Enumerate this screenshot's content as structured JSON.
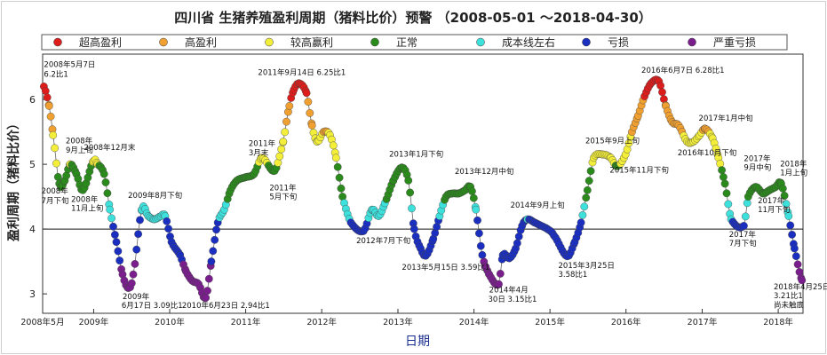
{
  "chart_data": {
    "type": "scatter",
    "title": "四川省 生猪养殖盈利周期（猪料比价）预警 （2008-05-01 ～2018-04-30）",
    "xlabel": "日期",
    "ylabel": "盈利周期（猪料比价）",
    "x_range": [
      "2008-05-01",
      "2018-04-30"
    ],
    "ylim": [
      2.7,
      6.7
    ],
    "yticks": [
      3,
      4,
      5,
      6
    ],
    "reference_line": 4,
    "legend_position": "top",
    "x_ticks": [
      {
        "date": "2008-05-01",
        "label": "2008年5月"
      },
      {
        "date": "2009-01-01",
        "label": "2009年"
      },
      {
        "date": "2010-01-01",
        "label": "2010年"
      },
      {
        "date": "2011-01-01",
        "label": "2011年"
      },
      {
        "date": "2012-01-01",
        "label": "2012年"
      },
      {
        "date": "2013-01-01",
        "label": "2013年"
      },
      {
        "date": "2014-01-01",
        "label": "2014年"
      },
      {
        "date": "2015-01-01",
        "label": "2015年"
      },
      {
        "date": "2016-01-01",
        "label": "2016年"
      },
      {
        "date": "2017-01-01",
        "label": "2017年"
      },
      {
        "date": "2018-01-01",
        "label": "2018年"
      }
    ],
    "categories": [
      {
        "name": "超高盈利",
        "color": "#dd1c1c"
      },
      {
        "name": "高盈利",
        "color": "#f0a030"
      },
      {
        "name": "较高赢利",
        "color": "#f2ee3a"
      },
      {
        "name": "正常",
        "color": "#2a8a1c"
      },
      {
        "name": "成本线左右",
        "color": "#3ee0dc"
      },
      {
        "name": "亏损",
        "color": "#1a2ec0"
      },
      {
        "name": "严重亏损",
        "color": "#7a1e8e"
      }
    ],
    "series_points": [
      [
        "2008-05-07",
        6.2
      ],
      [
        "2008-06-01",
        5.9
      ],
      [
        "2008-06-20",
        5.45
      ],
      [
        "2008-07-20",
        4.7
      ],
      [
        "2008-08-15",
        4.75
      ],
      [
        "2008-09-10",
        5.0
      ],
      [
        "2008-10-10",
        4.85
      ],
      [
        "2008-11-10",
        4.6
      ],
      [
        "2008-12-31",
        5.05
      ],
      [
        "2009-01-20",
        5.0
      ],
      [
        "2009-02-20",
        4.85
      ],
      [
        "2009-03-20",
        4.3
      ],
      [
        "2009-04-20",
        3.8
      ],
      [
        "2009-05-20",
        3.3
      ],
      [
        "2009-06-17",
        3.09
      ],
      [
        "2009-07-10",
        3.3
      ],
      [
        "2009-08-20",
        4.3
      ],
      [
        "2009-09-20",
        4.2
      ],
      [
        "2009-10-20",
        4.15
      ],
      [
        "2009-11-20",
        4.2
      ],
      [
        "2009-12-10",
        4.2
      ],
      [
        "2010-01-10",
        3.8
      ],
      [
        "2010-02-20",
        3.6
      ],
      [
        "2010-03-20",
        3.35
      ],
      [
        "2010-04-20",
        3.2
      ],
      [
        "2010-05-20",
        3.15
      ],
      [
        "2010-06-23",
        2.94
      ],
      [
        "2010-07-20",
        3.5
      ],
      [
        "2010-08-20",
        4.1
      ],
      [
        "2010-09-20",
        4.3
      ],
      [
        "2010-10-20",
        4.6
      ],
      [
        "2010-11-20",
        4.75
      ],
      [
        "2010-12-31",
        4.8
      ],
      [
        "2011-02-10",
        4.85
      ],
      [
        "2011-03-20",
        5.1
      ],
      [
        "2011-05-20",
        4.9
      ],
      [
        "2011-06-30",
        5.35
      ],
      [
        "2011-07-30",
        5.9
      ],
      [
        "2011-08-20",
        6.15
      ],
      [
        "2011-09-14",
        6.25
      ],
      [
        "2011-10-20",
        6.1
      ],
      [
        "2011-11-15",
        5.6
      ],
      [
        "2011-12-10",
        5.35
      ],
      [
        "2012-01-10",
        5.5
      ],
      [
        "2012-02-10",
        5.45
      ],
      [
        "2012-03-10",
        5.1
      ],
      [
        "2012-04-10",
        4.5
      ],
      [
        "2012-05-20",
        4.1
      ],
      [
        "2012-07-20",
        3.97
      ],
      [
        "2012-08-30",
        4.3
      ],
      [
        "2012-09-30",
        4.2
      ],
      [
        "2012-10-30",
        4.4
      ],
      [
        "2012-12-10",
        4.75
      ],
      [
        "2013-01-20",
        4.95
      ],
      [
        "2013-02-20",
        4.75
      ],
      [
        "2013-03-20",
        4.0
      ],
      [
        "2013-04-20",
        3.7
      ],
      [
        "2013-05-15",
        3.59
      ],
      [
        "2013-06-20",
        3.85
      ],
      [
        "2013-07-20",
        4.2
      ],
      [
        "2013-08-20",
        4.5
      ],
      [
        "2013-09-20",
        4.55
      ],
      [
        "2013-10-20",
        4.55
      ],
      [
        "2013-11-20",
        4.6
      ],
      [
        "2013-12-15",
        4.65
      ],
      [
        "2014-01-10",
        4.3
      ],
      [
        "2014-02-10",
        3.6
      ],
      [
        "2014-03-15",
        3.3
      ],
      [
        "2014-04-30",
        3.15
      ],
      [
        "2014-05-20",
        3.6
      ],
      [
        "2014-06-20",
        3.55
      ],
      [
        "2014-07-20",
        3.7
      ],
      [
        "2014-08-20",
        4.05
      ],
      [
        "2014-09-15",
        4.15
      ],
      [
        "2014-10-20",
        4.1
      ],
      [
        "2014-11-20",
        4.05
      ],
      [
        "2014-12-20",
        4.0
      ],
      [
        "2015-01-20",
        3.9
      ],
      [
        "2015-03-25",
        3.58
      ],
      [
        "2015-04-30",
        3.8
      ],
      [
        "2015-05-30",
        4.1
      ],
      [
        "2015-06-30",
        4.6
      ],
      [
        "2015-07-30",
        5.1
      ],
      [
        "2015-09-15",
        5.15
      ],
      [
        "2015-10-20",
        5.1
      ],
      [
        "2015-11-20",
        4.97
      ],
      [
        "2015-12-30",
        5.15
      ],
      [
        "2016-01-30",
        5.5
      ],
      [
        "2016-02-28",
        5.75
      ],
      [
        "2016-03-30",
        6.05
      ],
      [
        "2016-04-30",
        6.25
      ],
      [
        "2016-06-07",
        6.28
      ],
      [
        "2016-07-10",
        5.9
      ],
      [
        "2016-08-10",
        5.65
      ],
      [
        "2016-09-10",
        5.6
      ],
      [
        "2016-10-20",
        5.35
      ],
      [
        "2016-11-20",
        5.35
      ],
      [
        "2016-12-20",
        5.45
      ],
      [
        "2017-01-15",
        5.55
      ],
      [
        "2017-02-20",
        5.4
      ],
      [
        "2017-03-20",
        5.1
      ],
      [
        "2017-04-20",
        4.7
      ],
      [
        "2017-05-20",
        4.15
      ],
      [
        "2017-07-20",
        4.05
      ],
      [
        "2017-08-10",
        4.5
      ],
      [
        "2017-09-15",
        4.65
      ],
      [
        "2017-10-20",
        4.55
      ],
      [
        "2017-11-20",
        4.6
      ],
      [
        "2017-12-20",
        4.65
      ],
      [
        "2018-01-15",
        4.7
      ],
      [
        "2018-02-20",
        4.2
      ],
      [
        "2018-03-20",
        3.7
      ],
      [
        "2018-04-25",
        3.21
      ]
    ],
    "annotations": [
      {
        "text": "2008年5月7日",
        "date": "2008-05-07",
        "value": 6.5
      },
      {
        "text": "6.2比1",
        "date": "2008-05-07",
        "value": 6.35
      },
      {
        "text": "2008年",
        "date": "2008-08-20",
        "value": 5.32
      },
      {
        "text": "9月上旬",
        "date": "2008-08-20",
        "value": 5.18
      },
      {
        "text": "2008年12月末",
        "date": "2008-11-15",
        "value": 5.22
      },
      {
        "text": "2008年",
        "date": "2008-04-25",
        "value": 4.55
      },
      {
        "text": "7月下旬",
        "date": "2008-04-25",
        "value": 4.4
      },
      {
        "text": "2008年",
        "date": "2008-09-15",
        "value": 4.42
      },
      {
        "text": "11月上旬",
        "date": "2008-09-15",
        "value": 4.28
      },
      {
        "text": "2009年8月下旬",
        "date": "2009-06-15",
        "value": 4.48
      },
      {
        "text": "2009年",
        "date": "2009-05-20",
        "value": 2.92
      },
      {
        "text": "6月17日  3.09比1",
        "date": "2009-05-15",
        "value": 2.78
      },
      {
        "text": "2010年6月23日  2.94比1",
        "date": "2010-03-01",
        "value": 2.78
      },
      {
        "text": "2011年",
        "date": "2011-01-15",
        "value": 5.28
      },
      {
        "text": "3月末",
        "date": "2011-01-15",
        "value": 5.14
      },
      {
        "text": "2011年",
        "date": "2011-04-25",
        "value": 4.6
      },
      {
        "text": "5月下旬",
        "date": "2011-04-25",
        "value": 4.46
      },
      {
        "text": "2011年9月14日  6.25比1",
        "date": "2011-03-01",
        "value": 6.38
      },
      {
        "text": "2012年7月下旬",
        "date": "2012-06-15",
        "value": 3.78
      },
      {
        "text": "2013年1月下旬",
        "date": "2012-11-20",
        "value": 5.12
      },
      {
        "text": "2013年5月15日  3.59比1",
        "date": "2013-01-20",
        "value": 3.37
      },
      {
        "text": "2013年12月中旬",
        "date": "2013-10-01",
        "value": 4.85
      },
      {
        "text": "2014年9月上旬",
        "date": "2014-06-25",
        "value": 4.33
      },
      {
        "text": "2014年4月",
        "date": "2014-03-15",
        "value": 3.02
      },
      {
        "text": "30日  3.15比1",
        "date": "2014-03-10",
        "value": 2.88
      },
      {
        "text": "2015年3月25日",
        "date": "2015-02-10",
        "value": 3.4
      },
      {
        "text": "3.58比1",
        "date": "2015-02-10",
        "value": 3.26
      },
      {
        "text": "2015年9月上旬",
        "date": "2015-06-20",
        "value": 5.32
      },
      {
        "text": "2015年11月下旬",
        "date": "2015-10-15",
        "value": 4.87
      },
      {
        "text": "2016年6月7日   6.28比1",
        "date": "2016-03-15",
        "value": 6.41
      },
      {
        "text": "2016年10月下旬",
        "date": "2016-09-05",
        "value": 5.14
      },
      {
        "text": "2017年1月中旬",
        "date": "2016-12-15",
        "value": 5.67
      },
      {
        "text": "2017年",
        "date": "2017-07-20",
        "value": 5.05
      },
      {
        "text": "9月中旬",
        "date": "2017-07-20",
        "value": 4.91
      },
      {
        "text": "2018年",
        "date": "2018-01-10",
        "value": 4.97
      },
      {
        "text": "1月上旬",
        "date": "2018-01-10",
        "value": 4.83
      },
      {
        "text": "2017年",
        "date": "2017-09-25",
        "value": 4.4
      },
      {
        "text": "11月下旬",
        "date": "2017-09-25",
        "value": 4.26
      },
      {
        "text": "2017年",
        "date": "2017-05-10",
        "value": 3.88
      },
      {
        "text": "7月下旬",
        "date": "2017-05-10",
        "value": 3.74
      },
      {
        "text": "2018年4月25日",
        "date": "2017-12-10",
        "value": 3.07
      },
      {
        "text": "3.21比1",
        "date": "2017-12-10",
        "value": 2.93
      },
      {
        "text": "尚未触底",
        "date": "2017-12-10",
        "value": 2.79
      }
    ]
  }
}
